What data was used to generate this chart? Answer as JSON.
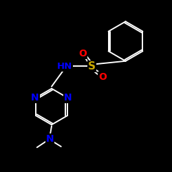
{
  "background": "#000000",
  "bond_color": "#ffffff",
  "N_color": "#0000ff",
  "O_color": "#ff0000",
  "S_color": "#ccaa00",
  "figsize": [
    2.5,
    2.5
  ],
  "dpi": 100,
  "xlim": [
    0,
    10
  ],
  "ylim": [
    0,
    10
  ]
}
